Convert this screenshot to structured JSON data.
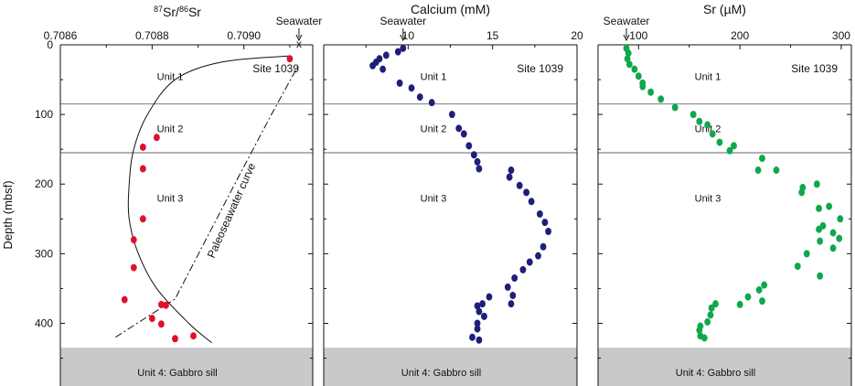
{
  "chart_data": [
    {
      "type": "scatter",
      "title": "",
      "xlabel_main": "87Sr/86Sr",
      "ylabel": "Depth (mbsf)",
      "xlim": [
        0.7086,
        0.70915
      ],
      "ylim": [
        0,
        490
      ],
      "xticks": [
        0.7086,
        0.7088,
        0.709
      ],
      "xtick_labels": [
        "0.7086",
        "0.7088",
        "0.7090"
      ],
      "yticks": [
        0,
        100,
        200,
        300,
        400
      ],
      "ytick_labels": [
        "0",
        "100",
        "200",
        "300",
        "400"
      ],
      "site_label": "Site 1039",
      "seawater": {
        "label": "Seawater",
        "x": 0.70912,
        "marker": "x"
      },
      "unit_boundaries": [
        85,
        155
      ],
      "units": [
        {
          "label": "Unit 1",
          "depth": 45
        },
        {
          "label": "Unit 2",
          "depth": 120
        },
        {
          "label": "Unit 3",
          "depth": 220
        }
      ],
      "gabbro": {
        "label": "Unit 4: Gabbro sill",
        "top": 435
      },
      "point_color": "#e0102a",
      "points": [
        {
          "x": 0.7091,
          "y": 20
        },
        {
          "x": 0.70881,
          "y": 133
        },
        {
          "x": 0.70878,
          "y": 147
        },
        {
          "x": 0.70878,
          "y": 178
        },
        {
          "x": 0.70878,
          "y": 250
        },
        {
          "x": 0.70876,
          "y": 280
        },
        {
          "x": 0.70876,
          "y": 320
        },
        {
          "x": 0.70874,
          "y": 366
        },
        {
          "x": 0.70882,
          "y": 373
        },
        {
          "x": 0.70883,
          "y": 374
        },
        {
          "x": 0.7088,
          "y": 393
        },
        {
          "x": 0.70882,
          "y": 401
        },
        {
          "x": 0.70889,
          "y": 418
        },
        {
          "x": 0.70885,
          "y": 422
        }
      ],
      "fit_curve": {
        "x": [
          0.7091,
          0.70895,
          0.70885,
          0.70879,
          0.70876,
          0.70875,
          0.70875,
          0.70877,
          0.70881,
          0.70888,
          0.70893
        ],
        "y": [
          16,
          25,
          50,
          100,
          150,
          200,
          250,
          300,
          350,
          400,
          428
        ]
      },
      "paleo_curve": {
        "label": "Paleoseawater curve",
        "x": [
          0.70872,
          0.70885,
          0.70898,
          0.70906,
          0.70912
        ],
        "y": [
          420,
          365,
          200,
          100,
          28
        ]
      }
    },
    {
      "type": "scatter",
      "title": "",
      "xlabel_main": "Calcium (mM)",
      "xlim": [
        5,
        20
      ],
      "ylim": [
        0,
        490
      ],
      "xticks": [
        10,
        15,
        20
      ],
      "xtick_labels": [
        "10",
        "15",
        "20"
      ],
      "yticks": [
        0,
        100,
        200,
        300,
        400
      ],
      "site_label": "Site 1039",
      "seawater": {
        "label": "Seawater",
        "x": 9.7,
        "marker": "point"
      },
      "unit_boundaries": [
        85,
        155
      ],
      "units": [
        {
          "label": "Unit 1",
          "depth": 45
        },
        {
          "label": "Unit 2",
          "depth": 120
        },
        {
          "label": "Unit 3",
          "depth": 220
        }
      ],
      "gabbro": {
        "label": "Unit 4: Gabbro sill",
        "top": 435
      },
      "point_color": "#1f1f7a",
      "points": [
        {
          "x": 9.7,
          "y": 5
        },
        {
          "x": 9.4,
          "y": 10
        },
        {
          "x": 8.7,
          "y": 15
        },
        {
          "x": 8.3,
          "y": 20
        },
        {
          "x": 8.1,
          "y": 25
        },
        {
          "x": 7.9,
          "y": 30
        },
        {
          "x": 8.5,
          "y": 35
        },
        {
          "x": 9.5,
          "y": 55
        },
        {
          "x": 10.2,
          "y": 62
        },
        {
          "x": 10.7,
          "y": 75
        },
        {
          "x": 11.4,
          "y": 83
        },
        {
          "x": 12.6,
          "y": 100
        },
        {
          "x": 13.0,
          "y": 120
        },
        {
          "x": 13.3,
          "y": 128
        },
        {
          "x": 13.6,
          "y": 145
        },
        {
          "x": 13.9,
          "y": 158
        },
        {
          "x": 14.1,
          "y": 168
        },
        {
          "x": 14.2,
          "y": 178
        },
        {
          "x": 16.1,
          "y": 180
        },
        {
          "x": 16.0,
          "y": 190
        },
        {
          "x": 16.6,
          "y": 202
        },
        {
          "x": 17.0,
          "y": 212
        },
        {
          "x": 17.3,
          "y": 225
        },
        {
          "x": 17.8,
          "y": 243
        },
        {
          "x": 18.1,
          "y": 255
        },
        {
          "x": 18.3,
          "y": 268
        },
        {
          "x": 18.0,
          "y": 290
        },
        {
          "x": 17.7,
          "y": 303
        },
        {
          "x": 17.2,
          "y": 312
        },
        {
          "x": 16.8,
          "y": 323
        },
        {
          "x": 16.3,
          "y": 335
        },
        {
          "x": 15.9,
          "y": 348
        },
        {
          "x": 16.2,
          "y": 360
        },
        {
          "x": 16.1,
          "y": 372
        },
        {
          "x": 14.8,
          "y": 362
        },
        {
          "x": 14.4,
          "y": 372
        },
        {
          "x": 14.1,
          "y": 375
        },
        {
          "x": 14.2,
          "y": 383
        },
        {
          "x": 14.5,
          "y": 390
        },
        {
          "x": 14.1,
          "y": 400
        },
        {
          "x": 14.1,
          "y": 408
        },
        {
          "x": 13.8,
          "y": 420
        },
        {
          "x": 14.2,
          "y": 424
        }
      ]
    },
    {
      "type": "scatter",
      "title": "",
      "xlabel_main": "Sr (µM)",
      "xlim": [
        60,
        310
      ],
      "ylim": [
        0,
        490
      ],
      "xticks": [
        100,
        200,
        300
      ],
      "xtick_labels": [
        "100",
        "200",
        "300"
      ],
      "yticks": [
        0,
        100,
        200,
        300,
        400
      ],
      "site_label": "Site 1039",
      "seawater": {
        "label": "Seawater",
        "x": 88,
        "marker": "point"
      },
      "unit_boundaries": [
        85,
        155
      ],
      "units": [
        {
          "label": "Unit 1",
          "depth": 45
        },
        {
          "label": "Unit 2",
          "depth": 120
        },
        {
          "label": "Unit 3",
          "depth": 220
        }
      ],
      "gabbro": {
        "label": "Unit 4: Gabbro sill",
        "top": 435
      },
      "point_color": "#0ea84a",
      "points": [
        {
          "x": 88,
          "y": 5
        },
        {
          "x": 90,
          "y": 12
        },
        {
          "x": 89,
          "y": 20
        },
        {
          "x": 91,
          "y": 28
        },
        {
          "x": 96,
          "y": 35
        },
        {
          "x": 100,
          "y": 45
        },
        {
          "x": 104,
          "y": 55
        },
        {
          "x": 104,
          "y": 60
        },
        {
          "x": 112,
          "y": 68
        },
        {
          "x": 122,
          "y": 78
        },
        {
          "x": 136,
          "y": 90
        },
        {
          "x": 154,
          "y": 100
        },
        {
          "x": 160,
          "y": 110
        },
        {
          "x": 168,
          "y": 115
        },
        {
          "x": 173,
          "y": 128
        },
        {
          "x": 180,
          "y": 140
        },
        {
          "x": 194,
          "y": 145
        },
        {
          "x": 190,
          "y": 152
        },
        {
          "x": 222,
          "y": 163
        },
        {
          "x": 218,
          "y": 180
        },
        {
          "x": 236,
          "y": 180
        },
        {
          "x": 262,
          "y": 205
        },
        {
          "x": 261,
          "y": 212
        },
        {
          "x": 276,
          "y": 200
        },
        {
          "x": 278,
          "y": 235
        },
        {
          "x": 288,
          "y": 232
        },
        {
          "x": 299,
          "y": 250
        },
        {
          "x": 282,
          "y": 260
        },
        {
          "x": 278,
          "y": 265
        },
        {
          "x": 292,
          "y": 270
        },
        {
          "x": 279,
          "y": 282
        },
        {
          "x": 298,
          "y": 278
        },
        {
          "x": 292,
          "y": 292
        },
        {
          "x": 266,
          "y": 300
        },
        {
          "x": 257,
          "y": 318
        },
        {
          "x": 279,
          "y": 332
        },
        {
          "x": 224,
          "y": 345
        },
        {
          "x": 219,
          "y": 352
        },
        {
          "x": 208,
          "y": 362
        },
        {
          "x": 222,
          "y": 368
        },
        {
          "x": 200,
          "y": 373
        },
        {
          "x": 176,
          "y": 372
        },
        {
          "x": 172,
          "y": 378
        },
        {
          "x": 171,
          "y": 388
        },
        {
          "x": 168,
          "y": 398
        },
        {
          "x": 161,
          "y": 404
        },
        {
          "x": 160,
          "y": 410
        },
        {
          "x": 161,
          "y": 418
        },
        {
          "x": 165,
          "y": 421
        }
      ]
    }
  ]
}
